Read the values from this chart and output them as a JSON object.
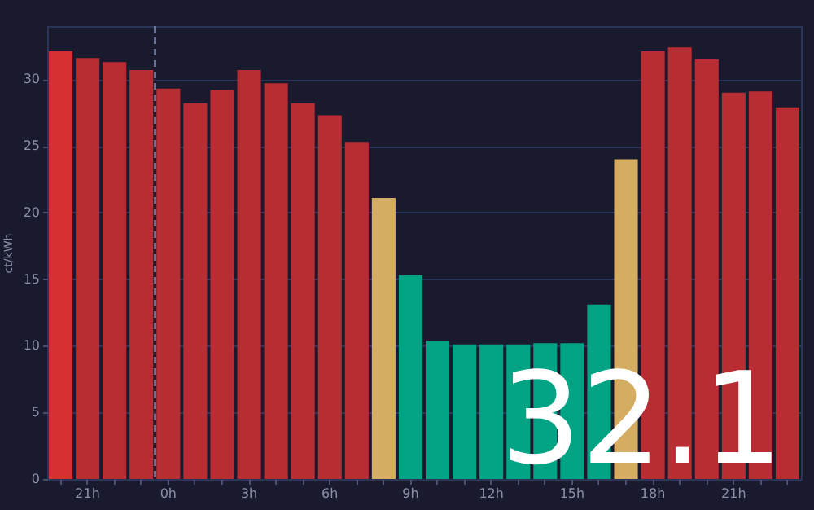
{
  "chart_data": {
    "type": "bar",
    "ylabel": "ct/kWh",
    "categories": [
      null,
      "21h",
      null,
      null,
      "0h",
      null,
      null,
      "3h",
      null,
      null,
      "6h",
      null,
      null,
      "9h",
      null,
      null,
      "12h",
      null,
      null,
      "15h",
      null,
      null,
      "18h",
      null,
      null,
      "21h",
      null,
      null
    ],
    "values": [
      32.1,
      31.6,
      31.3,
      30.7,
      29.3,
      28.2,
      29.2,
      30.7,
      29.7,
      28.2,
      27.3,
      25.3,
      21.1,
      15.3,
      10.4,
      10.1,
      10.1,
      10.1,
      10.2,
      10.2,
      13.1,
      24.0,
      32.1,
      32.4,
      31.5,
      29.0,
      29.1,
      27.9
    ],
    "colors": [
      "#d63031",
      "#b82c33",
      "#b82c33",
      "#b82c33",
      "#b82c33",
      "#b82c33",
      "#b82c33",
      "#b82c33",
      "#b82c33",
      "#b82c33",
      "#b82c33",
      "#b82c33",
      "#d4ad62",
      "#00a383",
      "#00a383",
      "#00a383",
      "#00a383",
      "#00a383",
      "#00a383",
      "#00a383",
      "#00a383",
      "#d4ad62",
      "#b82c33",
      "#b82c33",
      "#b82c33",
      "#b82c33",
      "#b82c33",
      "#b82c33"
    ],
    "ylim": [
      0,
      34
    ],
    "yticks": [
      0,
      5,
      10,
      15,
      20,
      25,
      30
    ],
    "grid": "y",
    "ref_lines": [
      {
        "axis": "x",
        "value": "0h",
        "color": "#7f8aad",
        "line_style": "dashed"
      }
    ],
    "annotations": [
      "32.1"
    ]
  }
}
